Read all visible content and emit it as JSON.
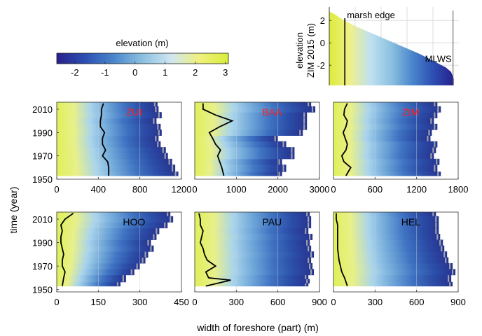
{
  "chart_data": [
    {
      "type": "heatmap",
      "role": "colorbar",
      "title": "elevation (m)",
      "range": [
        -2.6,
        3.1
      ],
      "ticks": [
        -2,
        -1,
        0,
        1,
        2,
        3
      ],
      "colormap": [
        "#26208c",
        "#2d4fb3",
        "#4a86cc",
        "#8cc0e0",
        "#cfe6f2",
        "#f0f07a",
        "#d8ee3c"
      ]
    },
    {
      "type": "area",
      "role": "profile",
      "ylabel": "elevation\nZIM 2015 (m)",
      "yticks": [
        2,
        0,
        -2
      ],
      "ylim": [
        -3.8,
        3.2
      ],
      "xlim": [
        0,
        1000
      ],
      "annotations": [
        "marsh edge",
        "MLWS"
      ],
      "x": [
        0,
        50,
        100,
        150,
        200,
        300,
        400,
        500,
        600,
        700,
        800,
        850,
        900,
        940,
        960
      ],
      "y": [
        2.8,
        2.5,
        2.1,
        1.8,
        1.5,
        1.0,
        0.5,
        0.0,
        -0.5,
        -1.0,
        -1.6,
        -1.9,
        -2.2,
        -2.6,
        -3.2
      ],
      "marsh_edge_x": 120,
      "mlws_x": 955
    },
    {
      "type": "heatmap",
      "site": "ZUI",
      "label_color": "#ff2020",
      "xlim": [
        0,
        1200
      ],
      "xticks": [
        0,
        400,
        800,
        1200
      ],
      "ylim": [
        1950,
        2016
      ],
      "years": [
        1953,
        1960,
        1965,
        1970,
        1975,
        1980,
        1985,
        1990,
        1995,
        2000,
        2005,
        2010,
        2015
      ],
      "marsh_edge": [
        500,
        500,
        490,
        440,
        470,
        440,
        440,
        460,
        420,
        420,
        430,
        430,
        450
      ],
      "extent": [
        1170,
        1140,
        1110,
        1070,
        1050,
        1000,
        980,
        1010,
        1000,
        960,
        1010,
        980,
        970
      ]
    },
    {
      "type": "heatmap",
      "site": "BAA",
      "label_color": "#ff2020",
      "xlim": [
        0,
        3000
      ],
      "xticks": [
        0,
        1000,
        2000,
        3000
      ],
      "ylim": [
        1950,
        2016
      ],
      "years": [
        1953,
        1960,
        1965,
        1970,
        1975,
        1980,
        1985,
        1990,
        1995,
        2000,
        2005,
        2010,
        2015
      ],
      "marsh_edge": [
        700,
        650,
        600,
        550,
        620,
        500,
        430,
        350,
        600,
        900,
        500,
        200,
        200
      ],
      "extent": [
        2100,
        2200,
        2100,
        2400,
        2400,
        2200,
        2000,
        2600,
        2700,
        2700,
        2700,
        2900,
        2800
      ]
    },
    {
      "type": "heatmap",
      "site": "ZIM",
      "label_color": "#ff2020",
      "xlim": [
        0,
        1800
      ],
      "xticks": [
        0,
        600,
        1200,
        1800
      ],
      "ylim": [
        1950,
        2016
      ],
      "years": [
        1953,
        1960,
        1965,
        1970,
        1975,
        1980,
        1985,
        1990,
        1995,
        2000,
        2005,
        2010,
        2015
      ],
      "marsh_edge": [
        180,
        250,
        150,
        120,
        180,
        200,
        170,
        140,
        180,
        200,
        150,
        160,
        200
      ],
      "extent": [
        1550,
        1500,
        1530,
        1450,
        1480,
        1500,
        1400,
        1420,
        1500,
        1450,
        1500,
        1550,
        1500
      ]
    },
    {
      "type": "heatmap",
      "site": "HOO",
      "label_color": "#000000",
      "xlim": [
        0,
        450
      ],
      "xticks": [
        0,
        150,
        300,
        450
      ],
      "ylim": [
        1948,
        2016
      ],
      "years": [
        1953,
        1960,
        1965,
        1970,
        1975,
        1980,
        1985,
        1990,
        1995,
        2000,
        2005,
        2010,
        2015
      ],
      "marsh_edge": [
        20,
        25,
        30,
        20,
        20,
        25,
        20,
        15,
        15,
        20,
        15,
        30,
        60
      ],
      "extent": [
        230,
        250,
        280,
        300,
        320,
        330,
        350,
        340,
        360,
        370,
        400,
        420,
        410
      ]
    },
    {
      "type": "heatmap",
      "site": "PAU",
      "label_color": "#000000",
      "xlim": [
        0,
        900
      ],
      "xticks": [
        0,
        300,
        600,
        900
      ],
      "ylim": [
        1948,
        2016
      ],
      "years": [
        1953,
        1958,
        1960,
        1965,
        1970,
        1975,
        1980,
        1985,
        1990,
        1995,
        2000,
        2005,
        2010,
        2015
      ],
      "marsh_edge": [
        80,
        260,
        100,
        80,
        150,
        90,
        70,
        60,
        40,
        50,
        60,
        40,
        40,
        30
      ],
      "extent": [
        820,
        830,
        820,
        860,
        850,
        840,
        860,
        840,
        830,
        850,
        820,
        840,
        840,
        830
      ]
    },
    {
      "type": "heatmap",
      "site": "HEL",
      "label_color": "#000000",
      "xlim": [
        0,
        900
      ],
      "xticks": [
        0,
        300,
        600,
        900
      ],
      "ylim": [
        1948,
        2016
      ],
      "years": [
        1953,
        1960,
        1965,
        1970,
        1975,
        1980,
        1985,
        1990,
        1995,
        2000,
        2005,
        2010,
        2015
      ],
      "marsh_edge": [
        100,
        80,
        60,
        50,
        40,
        35,
        30,
        30,
        30,
        30,
        30,
        20,
        20
      ],
      "extent": [
        860,
        850,
        880,
        860,
        830,
        820,
        800,
        790,
        770,
        760,
        760,
        760,
        740
      ]
    }
  ],
  "yticks_top": [
    1950,
    1970,
    1990,
    2010
  ],
  "yticks_bottom": [
    1950,
    1970,
    1990,
    2010
  ],
  "ylabel": "time (year)",
  "xlabel": "width of foreshore (part) (m)"
}
